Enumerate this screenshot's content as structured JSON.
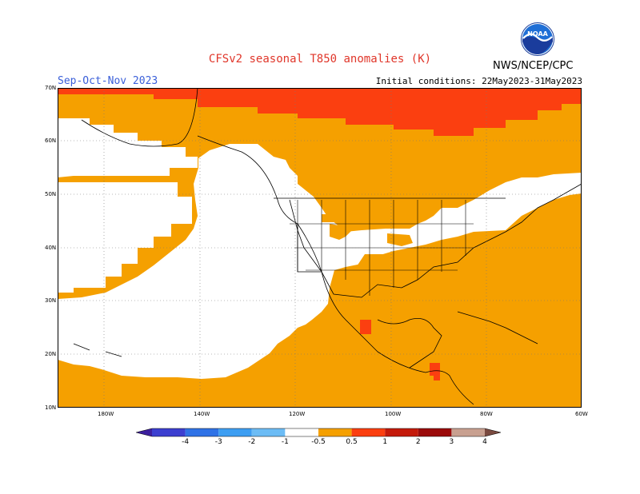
{
  "title": "CFSv2 seasonal T850 anomalies (K)",
  "season": "Sep-Oct-Nov 2023",
  "initial_conditions": "Initial conditions: 22May2023-31May2023",
  "org_label": "NWS/NCEP/CPC",
  "logo_text": "NOAA",
  "lat_labels": [
    "70N",
    "60N",
    "50N",
    "40N",
    "30N",
    "20N",
    "10N"
  ],
  "lon_labels": [
    "180W",
    "140W",
    "120W",
    "100W",
    "80W",
    "60W"
  ],
  "colorbar": {
    "labels": [
      "-4",
      "-3",
      "-2",
      "-1",
      "-0.5",
      "0.5",
      "1",
      "2",
      "3",
      "4"
    ],
    "colors": [
      "#3c1f9e",
      "#3c3fd0",
      "#2f72e6",
      "#3d9ef2",
      "#6cbcf5",
      "#ffffff",
      "#f5a000",
      "#fb3f10",
      "#c41a0a",
      "#9b0a0a",
      "#c8a090",
      "#7a4a40"
    ]
  },
  "colors": {
    "anomaly_05_1": "#f5a000",
    "anomaly_1_2": "#fb3f10",
    "neutral": "#ffffff"
  }
}
